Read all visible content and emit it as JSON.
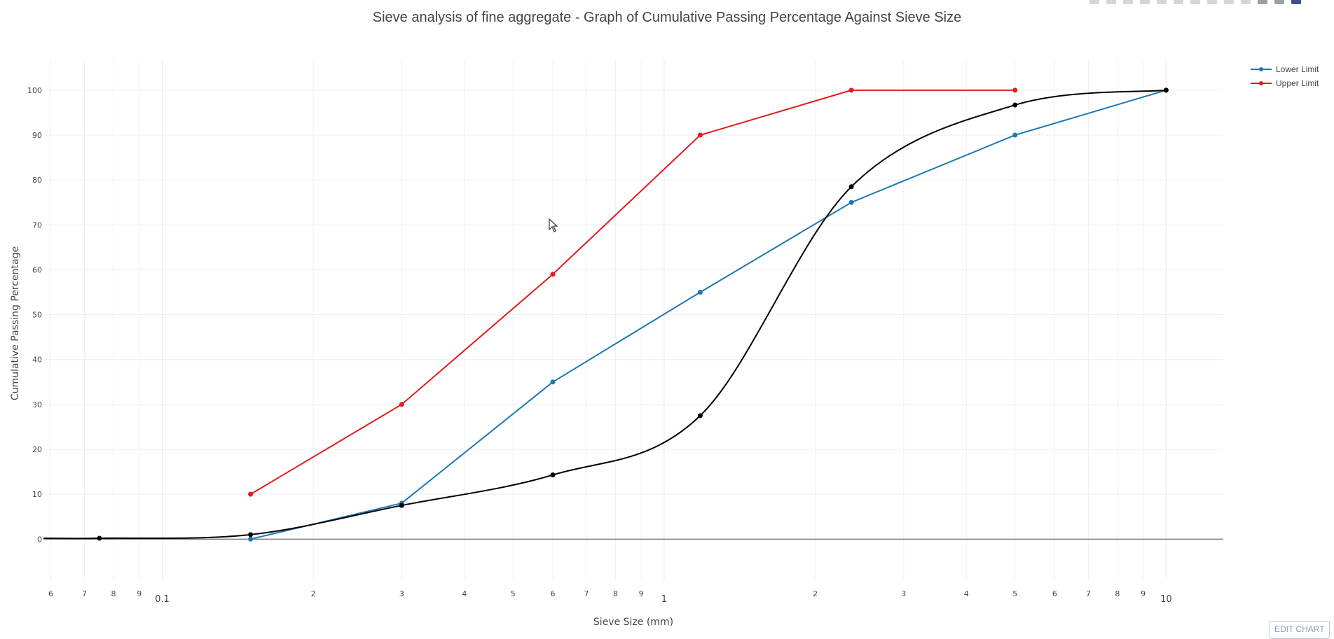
{
  "chart": {
    "title": "Sieve analysis of fine aggregate - Graph of Cumulative Passing Percentage Against Sieve Size",
    "edit_label": "EDIT CHART"
  },
  "chart_data": {
    "type": "line",
    "title": "Sieve analysis of fine aggregate - Graph of Cumulative Passing Percentage Against Sieve Size",
    "xlabel": "Sieve Size (mm)",
    "ylabel": "Cumulative Passing Percentage",
    "x_scale": "log",
    "xlim": [
      0.058,
      13
    ],
    "ylim": [
      -9,
      107
    ],
    "grid": true,
    "legend_position": "top-right",
    "x_major_ticks": [
      {
        "v": 0.1,
        "label": "0.1"
      },
      {
        "v": 1,
        "label": "1"
      },
      {
        "v": 10,
        "label": "10"
      }
    ],
    "x_minor_ticks": [
      {
        "v": 0.06,
        "label": "6"
      },
      {
        "v": 0.07,
        "label": "7"
      },
      {
        "v": 0.08,
        "label": "8"
      },
      {
        "v": 0.09,
        "label": "9"
      },
      {
        "v": 0.2,
        "label": "2"
      },
      {
        "v": 0.3,
        "label": "3"
      },
      {
        "v": 0.4,
        "label": "4"
      },
      {
        "v": 0.5,
        "label": "5"
      },
      {
        "v": 0.6,
        "label": "6"
      },
      {
        "v": 0.7,
        "label": "7"
      },
      {
        "v": 0.8,
        "label": "8"
      },
      {
        "v": 0.9,
        "label": "9"
      },
      {
        "v": 2,
        "label": "2"
      },
      {
        "v": 3,
        "label": "3"
      },
      {
        "v": 4,
        "label": "4"
      },
      {
        "v": 5,
        "label": "5"
      },
      {
        "v": 6,
        "label": "6"
      },
      {
        "v": 7,
        "label": "7"
      },
      {
        "v": 8,
        "label": "8"
      },
      {
        "v": 9,
        "label": "9"
      }
    ],
    "y_ticks": [
      0,
      10,
      20,
      30,
      40,
      50,
      60,
      70,
      80,
      90,
      100
    ],
    "series": [
      {
        "name": "Lower Limit",
        "color": "#1f77b4",
        "shape": "linear",
        "in_legend": true,
        "x": [
          0.15,
          0.3,
          0.6,
          1.18,
          2.36,
          5,
          10
        ],
        "y": [
          0,
          8,
          35,
          55,
          75,
          90,
          100
        ]
      },
      {
        "name": "Upper Limit",
        "color": "#e41a1c",
        "shape": "linear",
        "in_legend": true,
        "x": [
          0.15,
          0.3,
          0.6,
          1.18,
          2.36,
          5
        ],
        "y": [
          10,
          30,
          59,
          90,
          100,
          100
        ]
      },
      {
        "color": "#000000",
        "shape": "spline",
        "in_legend": false,
        "x": [
          0.058,
          0.075,
          0.15,
          0.3,
          0.6,
          1.18,
          2.36,
          5,
          10
        ],
        "y": [
          0.2,
          0.2,
          1,
          7.5,
          14.3,
          27.5,
          78.5,
          96.7,
          100
        ]
      }
    ]
  },
  "toolbar": {
    "icons": [
      "camera-icon",
      "zoom-icon",
      "pan-icon",
      "box-select-icon",
      "lasso-icon",
      "zoom-in-icon",
      "zoom-out-icon",
      "autoscale-icon",
      "reset-axes-icon",
      "spike-lines-icon",
      "hover-closest-icon",
      "hover-compare-icon",
      "plotly-logo-icon"
    ]
  }
}
